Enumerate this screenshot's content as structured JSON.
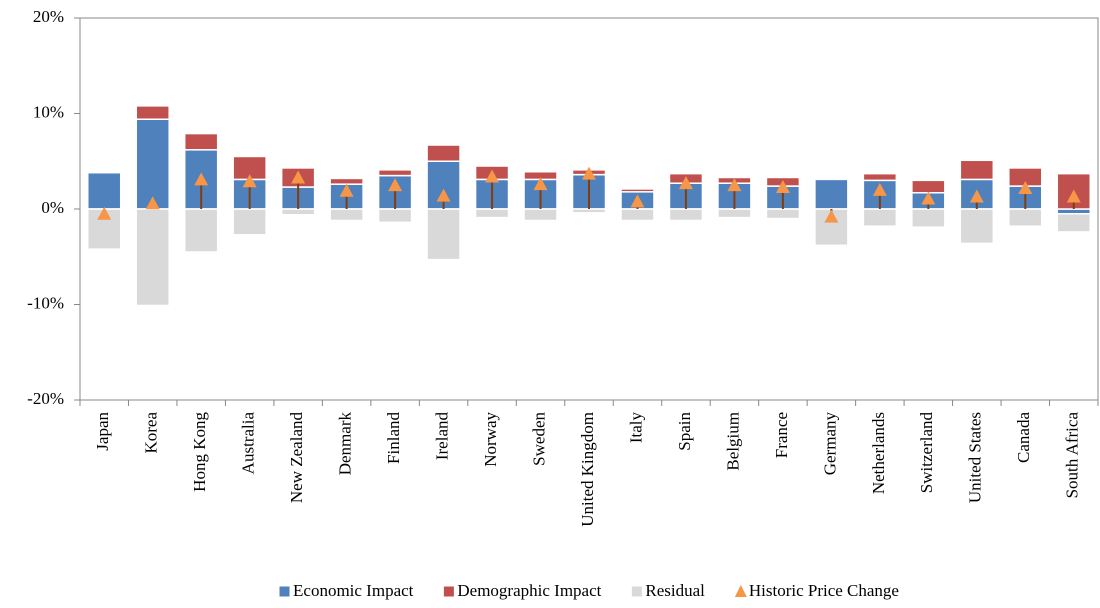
{
  "chart_data": {
    "type": "bar",
    "stacked": true,
    "categories": [
      "Japan",
      "Korea",
      "Hong Kong",
      "Australia",
      "New Zealand",
      "Denmark",
      "Finland",
      "Ireland",
      "Norway",
      "Sweden",
      "United Kingdom",
      "Italy",
      "Spain",
      "Belgium",
      "France",
      "Germany",
      "Netherlands",
      "Switzerland",
      "United States",
      "Canada",
      "South Africa"
    ],
    "series": [
      {
        "name": "Economic Impact",
        "type": "bar",
        "color": "#4f81bd",
        "values": [
          3.8,
          9.4,
          6.2,
          3.1,
          2.3,
          2.6,
          3.5,
          5.0,
          3.1,
          3.1,
          3.6,
          1.8,
          2.7,
          2.7,
          2.4,
          3.1,
          3.0,
          1.7,
          3.1,
          2.4,
          -0.5
        ]
      },
      {
        "name": "Demographic Impact",
        "type": "bar",
        "color": "#c0504d",
        "values": [
          0,
          1.4,
          1.7,
          2.4,
          2.0,
          0.6,
          0.6,
          1.7,
          1.4,
          0.8,
          0.5,
          0.3,
          1.0,
          0.6,
          0.9,
          0,
          0.7,
          1.3,
          2.0,
          1.9,
          3.7
        ]
      },
      {
        "name": "Residual",
        "type": "bar",
        "color": "#d9d9d9",
        "values": [
          -4.2,
          -10.1,
          -4.5,
          -2.7,
          -0.6,
          -1.2,
          -1.4,
          -5.3,
          -0.9,
          -1.2,
          -0.4,
          -1.2,
          -1.2,
          -0.9,
          -1.0,
          -3.8,
          -1.8,
          -1.9,
          -3.6,
          -1.8,
          -1.9
        ]
      },
      {
        "name": "Historic Price Change",
        "type": "marker",
        "color": "#f79646",
        "drop_line_color": "#843c0c",
        "values": [
          -0.6,
          0.5,
          3.0,
          2.8,
          3.2,
          1.8,
          2.4,
          1.3,
          3.3,
          2.5,
          3.6,
          0.7,
          2.6,
          2.4,
          2.2,
          -0.9,
          1.9,
          1.0,
          1.2,
          2.1,
          1.2
        ]
      }
    ],
    "ylim": [
      -20,
      20
    ],
    "yticks": [
      {
        "value": -20,
        "label": "-20%"
      },
      {
        "value": -10,
        "label": "-10%"
      },
      {
        "value": 0,
        "label": "0%"
      },
      {
        "value": 10,
        "label": "10%"
      },
      {
        "value": 20,
        "label": "20%"
      }
    ],
    "negative_tick_label_color": "#ff0000",
    "legend": "bottom"
  }
}
